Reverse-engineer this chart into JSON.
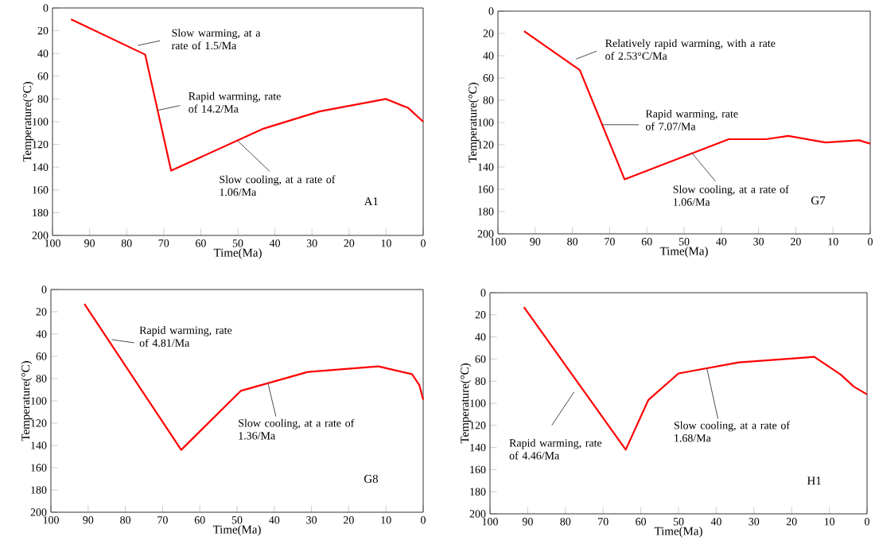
{
  "chart_data": [
    {
      "type": "line",
      "xlabel": "Time(Ma)",
      "ylabel": "Temperature(°C)",
      "xlim": [
        100,
        0
      ],
      "ylim": [
        200,
        0
      ],
      "xticks": [
        100,
        90,
        80,
        70,
        60,
        50,
        40,
        30,
        20,
        10,
        0
      ],
      "yticks": [
        0,
        20,
        40,
        60,
        80,
        100,
        120,
        140,
        160,
        180,
        200
      ],
      "grid": false,
      "marker": "none",
      "line_style": "solid",
      "series": [
        {
          "color": "#ff0000",
          "x": [
            95,
            75,
            68,
            43,
            28,
            10,
            4,
            0
          ],
          "values": [
            10,
            41,
            143,
            106,
            91,
            80,
            88,
            100
          ]
        }
      ],
      "annotations": [
        {
          "text": "Slow warming, at a rate of 1.5/Ma",
          "x": 77,
          "y": 33
        },
        {
          "text": "Rapid warming, rate of 14.2/Ma",
          "x": 71.6,
          "y": 90
        },
        {
          "text": "Slow cooling, at a rate of 1.06/Ma",
          "x": 50,
          "y": 117
        },
        "A1"
      ]
    },
    {
      "type": "line",
      "xlabel": "Time(Ma)",
      "ylabel": "Temperature(°C)",
      "xlim": [
        100,
        0
      ],
      "ylim": [
        200,
        0
      ],
      "xticks": [
        100,
        90,
        80,
        70,
        60,
        50,
        40,
        30,
        20,
        10,
        0
      ],
      "yticks": [
        0,
        20,
        40,
        60,
        80,
        100,
        120,
        140,
        160,
        180,
        200
      ],
      "grid": false,
      "marker": "none",
      "line_style": "solid",
      "series": [
        {
          "color": "#ff0000",
          "x": [
            93,
            78,
            66,
            38,
            28,
            22,
            12,
            3,
            0
          ],
          "values": [
            18,
            53,
            151,
            115,
            115,
            112,
            118,
            116,
            119
          ]
        }
      ],
      "annotations": [
        {
          "text": "Relatively rapid warming, with a rate of 2.53°C/Ma",
          "x": 79,
          "y": 43
        },
        {
          "text": "Rapid warming, rate of 7.07/Ma",
          "x": 72,
          "y": 102
        },
        {
          "text": "Slow cooling, at a rate of 1.06/Ma",
          "x": 48,
          "y": 127
        },
        "G7"
      ]
    },
    {
      "type": "line",
      "xlabel": "Time(Ma)",
      "ylabel": "Temperature(°C)",
      "xlim": [
        100,
        0
      ],
      "ylim": [
        200,
        0
      ],
      "xticks": [
        100,
        90,
        80,
        70,
        60,
        50,
        40,
        30,
        20,
        10,
        0
      ],
      "yticks": [
        0,
        20,
        40,
        60,
        80,
        100,
        120,
        140,
        160,
        180,
        200
      ],
      "grid": false,
      "marker": "none",
      "line_style": "solid",
      "series": [
        {
          "color": "#ff0000",
          "x": [
            91,
            65,
            49,
            31,
            12,
            3,
            1,
            0
          ],
          "values": [
            13,
            144,
            91,
            74,
            69,
            76,
            86,
            99
          ]
        }
      ],
      "annotations": [
        {
          "text": "Rapid warming, rate of 4.81/Ma",
          "x": 83.6,
          "y": 45
        },
        {
          "text": "Slow cooling, at a rate of 1.36/Ma",
          "x": 41.7,
          "y": 84
        },
        "G8"
      ]
    },
    {
      "type": "line",
      "xlabel": "Time(Ma)",
      "ylabel": "Temperature(°C)",
      "xlim": [
        100,
        0
      ],
      "ylim": [
        200,
        0
      ],
      "xticks": [
        100,
        90,
        80,
        70,
        60,
        50,
        40,
        30,
        20,
        10,
        0
      ],
      "yticks": [
        0,
        20,
        40,
        60,
        80,
        100,
        120,
        140,
        160,
        180,
        200
      ],
      "grid": false,
      "marker": "none",
      "line_style": "solid",
      "series": [
        {
          "color": "#ff0000",
          "x": [
            91,
            64,
            58,
            50,
            34,
            14,
            7,
            3.5,
            0
          ],
          "values": [
            13,
            142,
            97,
            73,
            63,
            58,
            74,
            85,
            92
          ]
        }
      ],
      "annotations": [
        {
          "text": "Rapid warming, rate of 4.46/Ma",
          "x": 77.7,
          "y": 89.7
        },
        {
          "text": "Slow cooling, at a rate of 1.68/Ma",
          "x": 42.5,
          "y": 68
        },
        "H1"
      ]
    }
  ]
}
